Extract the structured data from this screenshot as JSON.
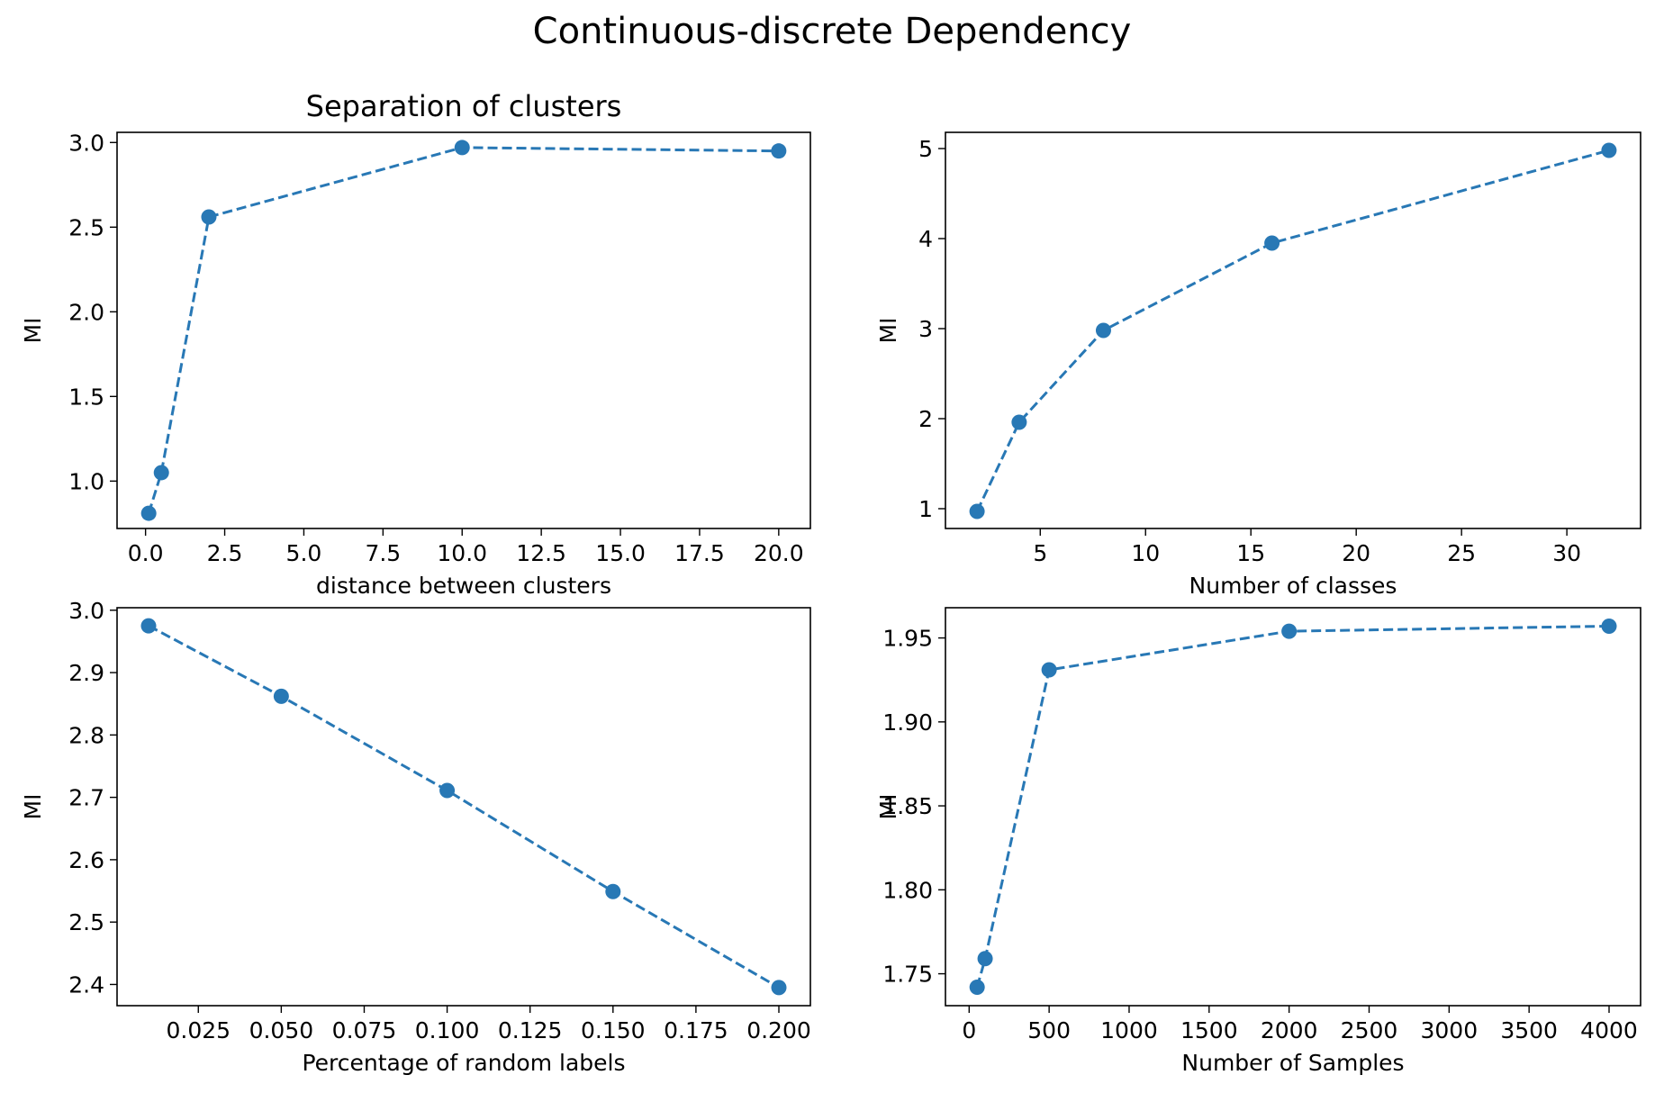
{
  "figure": {
    "suptitle": "Continuous-discrete Dependency"
  },
  "colors": {
    "series": "#2878b5",
    "axes": "#000000",
    "background": "#ffffff"
  },
  "chart_data": [
    {
      "type": "line",
      "title": "Separation of clusters",
      "xlabel": "distance between clusters",
      "ylabel": "MI",
      "marker": "circle",
      "linestyle": "dashed",
      "x": [
        0.1,
        0.5,
        2,
        10,
        20
      ],
      "y": [
        0.81,
        1.05,
        2.56,
        2.97,
        2.95
      ],
      "xlim": [
        -0.9,
        21.0
      ],
      "ylim": [
        0.72,
        3.06
      ],
      "xticks": [
        0.0,
        2.5,
        5.0,
        7.5,
        10.0,
        12.5,
        15.0,
        17.5,
        20.0
      ],
      "xtick_labels": [
        "0.0",
        "2.5",
        "5.0",
        "7.5",
        "10.0",
        "12.5",
        "15.0",
        "17.5",
        "20.0"
      ],
      "yticks": [
        1.0,
        1.5,
        2.0,
        2.5,
        3.0
      ],
      "ytick_labels": [
        "1.0",
        "1.5",
        "2.0",
        "2.5",
        "3.0"
      ]
    },
    {
      "type": "line",
      "title": "",
      "xlabel": "Number of classes",
      "ylabel": "MI",
      "marker": "circle",
      "linestyle": "dashed",
      "x": [
        2,
        4,
        8,
        16,
        32
      ],
      "y": [
        0.97,
        1.96,
        2.98,
        3.95,
        4.98
      ],
      "xlim": [
        0.5,
        33.5
      ],
      "ylim": [
        0.78,
        5.18
      ],
      "xticks": [
        5,
        10,
        15,
        20,
        25,
        30
      ],
      "xtick_labels": [
        "5",
        "10",
        "15",
        "20",
        "25",
        "30"
      ],
      "yticks": [
        1,
        2,
        3,
        4,
        5
      ],
      "ytick_labels": [
        "1",
        "2",
        "3",
        "4",
        "5"
      ]
    },
    {
      "type": "line",
      "title": "",
      "xlabel": "Percentage of random labels",
      "ylabel": "MI",
      "marker": "circle",
      "linestyle": "dashed",
      "x": [
        0.01,
        0.05,
        0.1,
        0.15,
        0.2
      ],
      "y": [
        2.975,
        2.862,
        2.711,
        2.549,
        2.395
      ],
      "xlim": [
        0.0005,
        0.2095
      ],
      "ylim": [
        2.366,
        3.004
      ],
      "xticks": [
        0.025,
        0.05,
        0.075,
        0.1,
        0.125,
        0.15,
        0.175,
        0.2
      ],
      "xtick_labels": [
        "0.025",
        "0.050",
        "0.075",
        "0.100",
        "0.125",
        "0.150",
        "0.175",
        "0.200"
      ],
      "yticks": [
        2.4,
        2.5,
        2.6,
        2.7,
        2.8,
        2.9,
        3.0
      ],
      "ytick_labels": [
        "2.4",
        "2.5",
        "2.6",
        "2.7",
        "2.8",
        "2.9",
        "3.0"
      ]
    },
    {
      "type": "line",
      "title": "",
      "xlabel": "Number of Samples",
      "ylabel": "MI",
      "marker": "circle",
      "linestyle": "dashed",
      "x": [
        50,
        100,
        500,
        2000,
        4000
      ],
      "y": [
        1.742,
        1.759,
        1.931,
        1.954,
        1.957
      ],
      "xlim": [
        -148,
        4197
      ],
      "ylim": [
        1.731,
        1.968
      ],
      "xticks": [
        0,
        500,
        1000,
        1500,
        2000,
        2500,
        3000,
        3500,
        4000
      ],
      "xtick_labels": [
        "0",
        "500",
        "1000",
        "1500",
        "2000",
        "2500",
        "3000",
        "3500",
        "4000"
      ],
      "yticks": [
        1.75,
        1.8,
        1.85,
        1.9,
        1.95
      ],
      "ytick_labels": [
        "1.75",
        "1.80",
        "1.85",
        "1.90",
        "1.95"
      ]
    }
  ]
}
